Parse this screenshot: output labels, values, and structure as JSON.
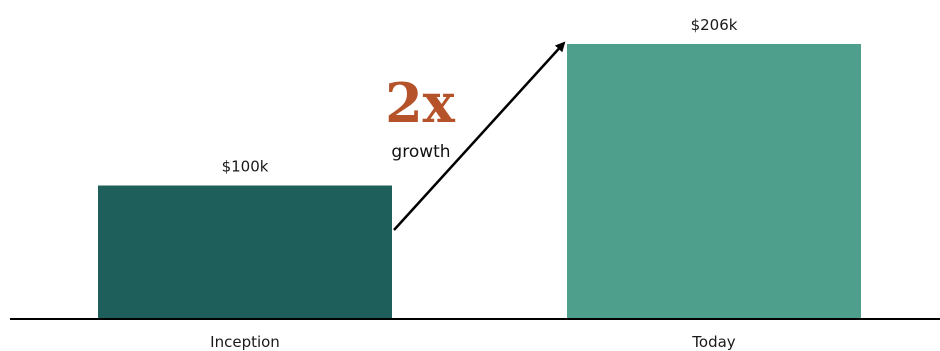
{
  "chart_data": {
    "type": "bar",
    "categories": [
      "Inception",
      "Today"
    ],
    "values": [
      100,
      206
    ],
    "value_labels": [
      "$100k",
      "$206k"
    ],
    "ylim": [
      0,
      206
    ],
    "grid": false,
    "colors": [
      "#1f5f5b",
      "#4e9f8b"
    ],
    "annotation": {
      "big": "2x",
      "small": "growth",
      "color": "#b5522a"
    }
  }
}
